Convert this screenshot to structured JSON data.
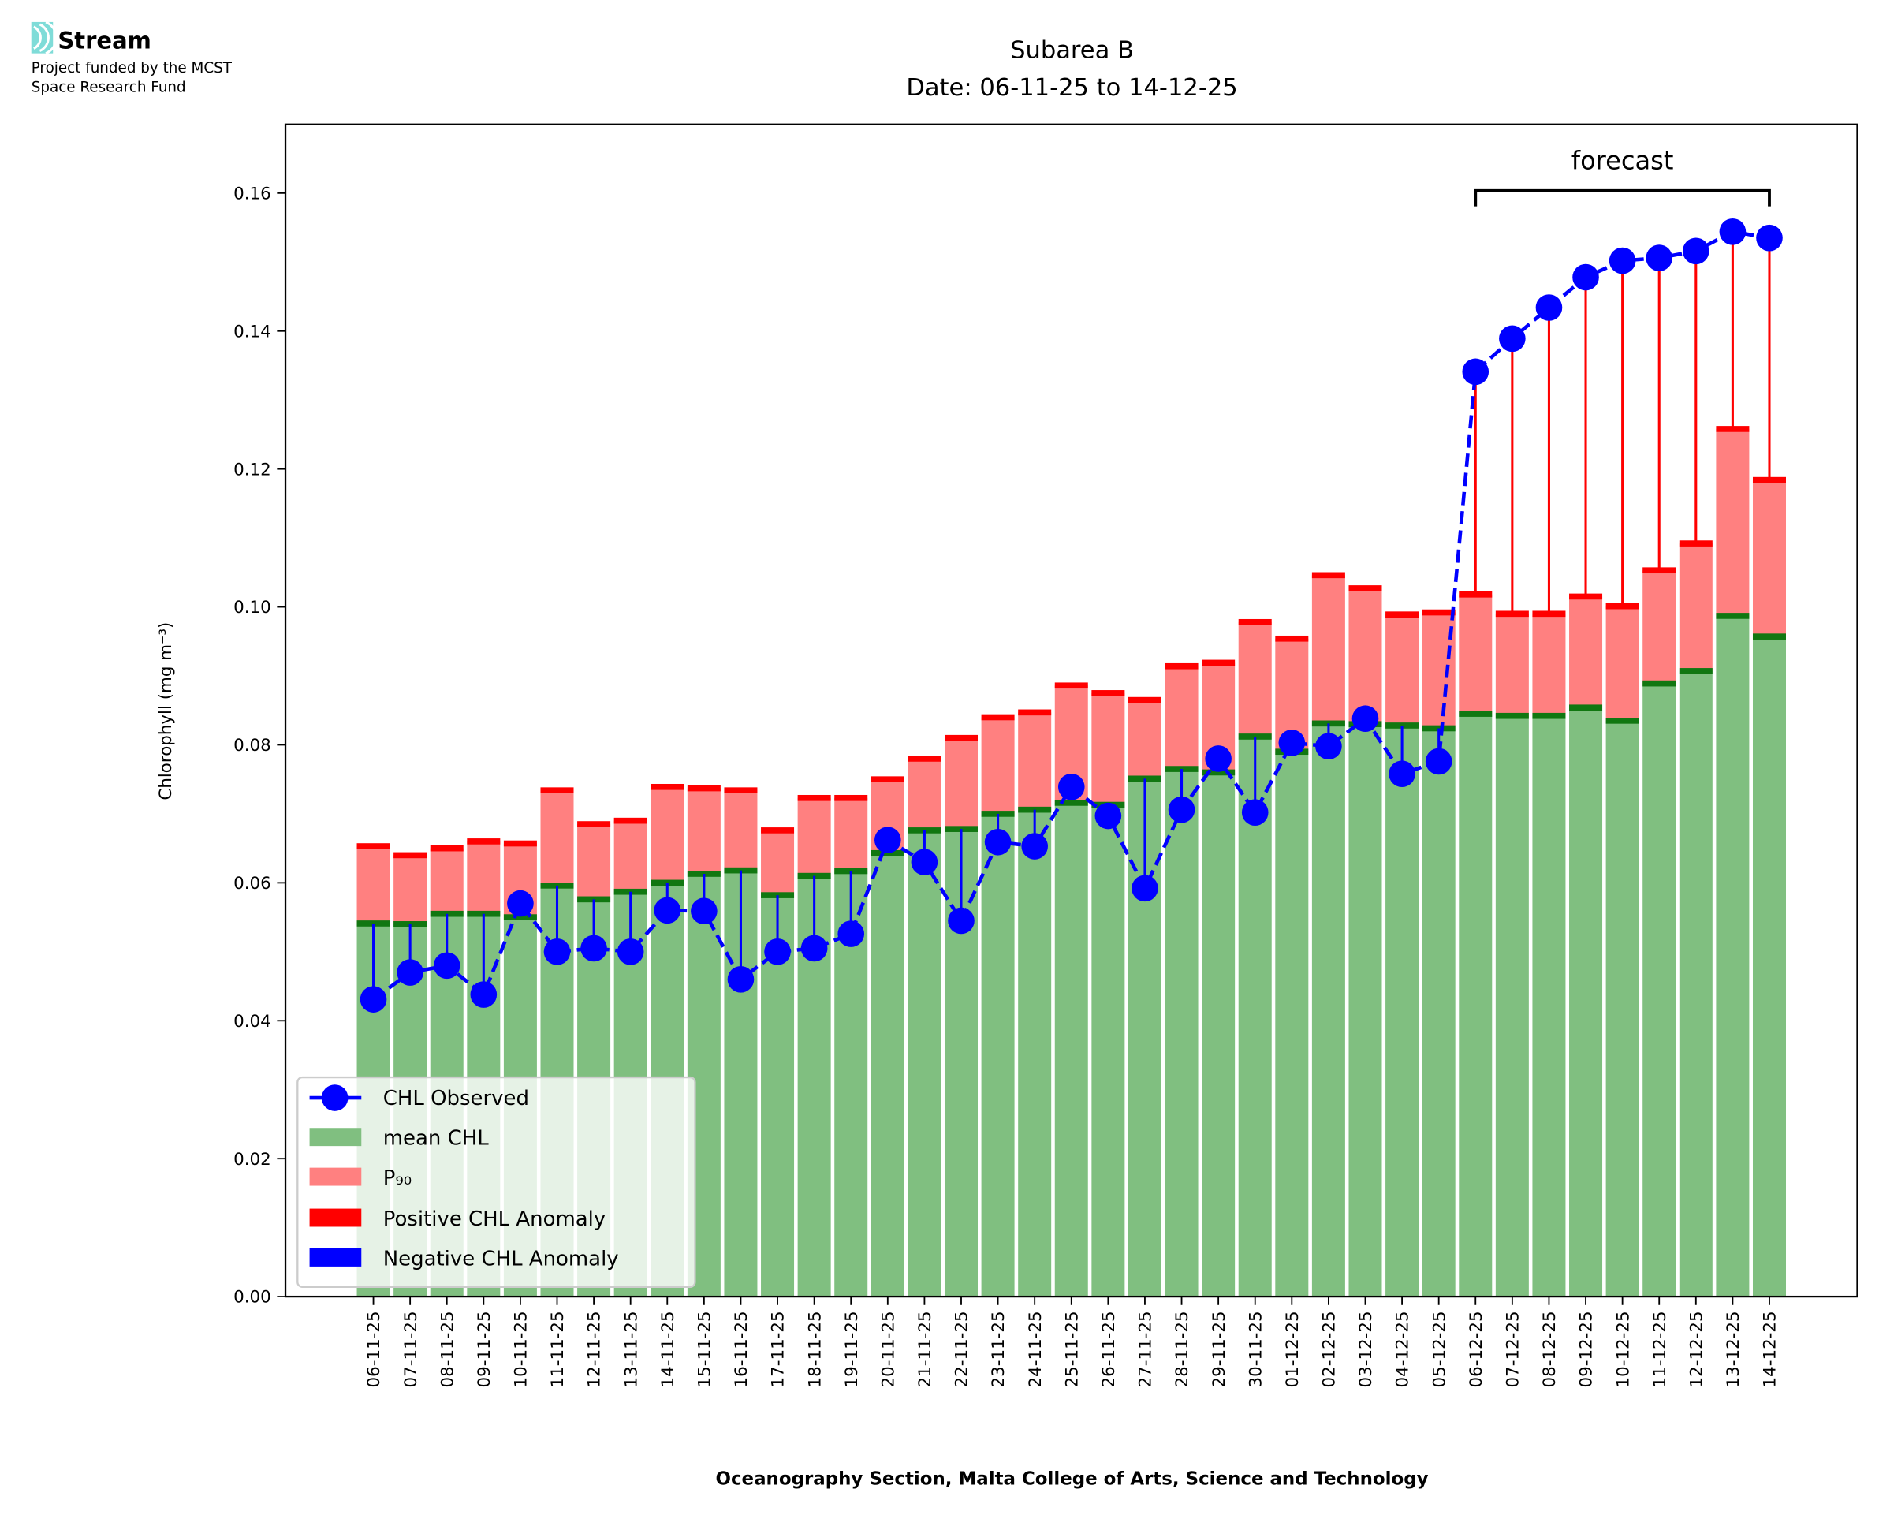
{
  "logo": {
    "name": "Stream",
    "line1": "Project funded by the MCST",
    "line2": "Space Research Fund",
    "color": "#7fdcd8"
  },
  "chart_data": {
    "type": "bar",
    "title": "Subarea B",
    "subtitle": "Date: 06-11-25 to 14-12-25",
    "xlabel": "Oceanography Section, Malta College of Arts, Science and Technology",
    "ylabel": "Chlorophyll (mg m⁻³)",
    "ylim": [
      0,
      0.17
    ],
    "yticks": [
      "0.00",
      "0.02",
      "0.04",
      "0.06",
      "0.08",
      "0.10",
      "0.12",
      "0.14",
      "0.16"
    ],
    "annotation": {
      "text": "forecast",
      "from": "06-12-25",
      "to": "14-12-25"
    },
    "legend_position": "lower-left",
    "legend": [
      "CHL Observed",
      "mean CHL",
      "P₉₀",
      "Positive CHL Anomaly",
      "Negative CHL Anomaly"
    ],
    "colors": {
      "observed": "#0000ff",
      "mean": "#80bf80",
      "mean_edge": "#117711",
      "p90": "#ff8080",
      "p90_edge": "#ff0000",
      "positive": "#ff0000",
      "negative": "#0000ff"
    },
    "categories": [
      "06-11-25",
      "07-11-25",
      "08-11-25",
      "09-11-25",
      "10-11-25",
      "11-11-25",
      "12-11-25",
      "13-11-25",
      "14-11-25",
      "15-11-25",
      "16-11-25",
      "17-11-25",
      "18-11-25",
      "19-11-25",
      "20-11-25",
      "21-11-25",
      "22-11-25",
      "23-11-25",
      "24-11-25",
      "25-11-25",
      "26-11-25",
      "27-11-25",
      "28-11-25",
      "29-11-25",
      "30-11-25",
      "01-12-25",
      "02-12-25",
      "03-12-25",
      "04-12-25",
      "05-12-25",
      "06-12-25",
      "07-12-25",
      "08-12-25",
      "09-12-25",
      "10-12-25",
      "11-12-25",
      "12-12-25",
      "13-12-25",
      "14-12-25"
    ],
    "series": [
      {
        "name": "mean CHL",
        "values": [
          0.0541,
          0.054,
          0.0555,
          0.0555,
          0.055,
          0.0596,
          0.0576,
          0.0587,
          0.06,
          0.0613,
          0.0618,
          0.0582,
          0.061,
          0.0617,
          0.0643,
          0.0676,
          0.0678,
          0.07,
          0.0706,
          0.0716,
          0.0713,
          0.0751,
          0.0765,
          0.076,
          0.0812,
          0.079,
          0.0831,
          0.083,
          0.0828,
          0.0824,
          0.0845,
          0.0842,
          0.0842,
          0.0854,
          0.0835,
          0.0889,
          0.0907,
          0.0987,
          0.0957
        ]
      },
      {
        "name": "P90",
        "values": [
          0.0653,
          0.064,
          0.065,
          0.066,
          0.0657,
          0.0734,
          0.0685,
          0.069,
          0.0739,
          0.0737,
          0.0734,
          0.0676,
          0.0723,
          0.0723,
          0.075,
          0.078,
          0.081,
          0.084,
          0.0847,
          0.0886,
          0.0875,
          0.0865,
          0.0914,
          0.0919,
          0.0978,
          0.0954,
          0.1046,
          0.1027,
          0.0989,
          0.0992,
          0.1018,
          0.099,
          0.099,
          0.1015,
          0.1001,
          0.1053,
          0.1092,
          0.1258,
          0.1184
        ]
      },
      {
        "name": "CHL Observed",
        "values": [
          0.0431,
          0.047,
          0.048,
          0.0438,
          0.057,
          0.05,
          0.0505,
          0.05,
          0.056,
          0.0559,
          0.046,
          0.05,
          0.0505,
          0.0526,
          0.0662,
          0.063,
          0.0545,
          0.0659,
          0.0653,
          0.0739,
          0.0697,
          0.0592,
          0.0706,
          0.078,
          0.0702,
          0.0803,
          0.0798,
          0.0838,
          0.0758,
          0.0776,
          0.1341,
          0.1389,
          0.1434,
          0.1478,
          0.1502,
          0.1506,
          0.1516,
          0.1544,
          0.1535
        ]
      }
    ],
    "forecast_start_index": 30
  }
}
